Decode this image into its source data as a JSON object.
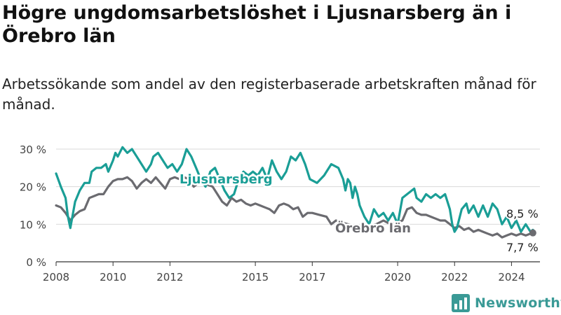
{
  "title": "Högre ungdomsarbetslöshet i Ljusnarsberg än i Örebro län",
  "subtitle": "Arbetssökande som andel av den registerbaserade arbetskraften månad för månad.",
  "brand": "Newsworthy",
  "colors": {
    "ljusnarsberg": "#1a9e96",
    "orebro": "#6b6b70",
    "grid": "#d9d9d9",
    "axis": "#333333"
  },
  "chart_data": {
    "type": "line",
    "x_ticks": [
      "2008",
      "2010",
      "2012",
      "2015",
      "2017",
      "2020",
      "2022",
      "2024"
    ],
    "y_ticks": [
      "0 %",
      "10 %",
      "20 %",
      "30 %"
    ],
    "ylim": [
      0,
      30
    ],
    "xlim": [
      "2008-01",
      "2025-01"
    ],
    "grid": true,
    "series": [
      {
        "name": "Ljusnarsberg",
        "color": "#1a9e96",
        "end_label": "8,5 %",
        "points": [
          [
            "2008-01",
            23.5
          ],
          [
            "2008-03",
            20
          ],
          [
            "2008-05",
            17
          ],
          [
            "2008-06",
            12
          ],
          [
            "2008-07",
            9
          ],
          [
            "2008-09",
            16
          ],
          [
            "2008-11",
            19
          ],
          [
            "2009-01",
            21
          ],
          [
            "2009-03",
            21
          ],
          [
            "2009-04",
            24
          ],
          [
            "2009-06",
            25
          ],
          [
            "2009-08",
            25
          ],
          [
            "2009-10",
            26
          ],
          [
            "2009-11",
            24
          ],
          [
            "2010-01",
            27
          ],
          [
            "2010-02",
            29
          ],
          [
            "2010-03",
            28
          ],
          [
            "2010-05",
            30.5
          ],
          [
            "2010-07",
            29
          ],
          [
            "2010-09",
            30
          ],
          [
            "2010-11",
            28
          ],
          [
            "2011-01",
            26
          ],
          [
            "2011-03",
            24
          ],
          [
            "2011-05",
            26
          ],
          [
            "2011-06",
            28
          ],
          [
            "2011-08",
            29
          ],
          [
            "2011-10",
            27
          ],
          [
            "2011-12",
            25
          ],
          [
            "2012-02",
            26
          ],
          [
            "2012-04",
            24
          ],
          [
            "2012-06",
            26
          ],
          [
            "2012-08",
            30
          ],
          [
            "2012-10",
            28
          ],
          [
            "2012-12",
            25
          ],
          [
            "2013-02",
            22
          ],
          [
            "2013-04",
            20
          ],
          [
            "2013-06",
            24
          ],
          [
            "2013-08",
            25
          ],
          [
            "2013-10",
            22
          ],
          [
            "2013-12",
            19
          ],
          [
            "2014-02",
            17
          ],
          [
            "2014-04",
            18
          ],
          [
            "2014-06",
            22
          ],
          [
            "2014-08",
            24
          ],
          [
            "2014-10",
            23
          ],
          [
            "2014-12",
            24
          ],
          [
            "2015-02",
            23
          ],
          [
            "2015-04",
            25
          ],
          [
            "2015-06",
            22
          ],
          [
            "2015-08",
            27
          ],
          [
            "2015-10",
            24
          ],
          [
            "2015-12",
            22
          ],
          [
            "2016-02",
            24
          ],
          [
            "2016-04",
            28
          ],
          [
            "2016-06",
            27
          ],
          [
            "2016-08",
            29
          ],
          [
            "2016-10",
            26
          ],
          [
            "2016-12",
            22
          ],
          [
            "2017-03",
            21
          ],
          [
            "2017-06",
            23
          ],
          [
            "2017-09",
            26
          ],
          [
            "2017-12",
            25
          ],
          [
            "2018-02",
            22
          ],
          [
            "2018-03",
            19
          ],
          [
            "2018-04",
            22
          ],
          [
            "2018-05",
            21
          ],
          [
            "2018-06",
            17
          ],
          [
            "2018-07",
            20
          ],
          [
            "2018-08",
            18
          ],
          [
            "2018-09",
            15
          ],
          [
            "2018-11",
            12
          ],
          [
            "2019-01",
            10
          ],
          [
            "2019-03",
            14
          ],
          [
            "2019-05",
            12
          ],
          [
            "2019-07",
            13
          ],
          [
            "2019-09",
            11
          ],
          [
            "2019-11",
            13
          ],
          [
            "2020-01",
            10
          ],
          [
            "2020-03",
            17
          ],
          [
            "2020-05",
            18
          ],
          [
            "2020-07",
            19
          ],
          [
            "2020-08",
            19.5
          ],
          [
            "2020-09",
            17
          ],
          [
            "2020-11",
            16
          ],
          [
            "2021-01",
            18
          ],
          [
            "2021-03",
            17
          ],
          [
            "2021-05",
            18
          ],
          [
            "2021-07",
            17
          ],
          [
            "2021-09",
            18
          ],
          [
            "2021-11",
            14
          ],
          [
            "2021-12",
            10
          ],
          [
            "2022-01",
            8
          ],
          [
            "2022-02",
            9
          ],
          [
            "2022-04",
            14
          ],
          [
            "2022-06",
            15.5
          ],
          [
            "2022-07",
            13
          ],
          [
            "2022-09",
            15
          ],
          [
            "2022-11",
            12
          ],
          [
            "2023-01",
            15
          ],
          [
            "2023-03",
            12
          ],
          [
            "2023-05",
            15.5
          ],
          [
            "2023-07",
            14
          ],
          [
            "2023-09",
            10
          ],
          [
            "2023-11",
            12
          ],
          [
            "2024-01",
            9
          ],
          [
            "2024-03",
            11
          ],
          [
            "2024-05",
            8
          ],
          [
            "2024-07",
            10
          ],
          [
            "2024-09",
            8
          ],
          [
            "2024-10",
            8.5
          ]
        ]
      },
      {
        "name": "Örebro län",
        "color": "#6b6b70",
        "end_label": "7,7 %",
        "points": [
          [
            "2008-01",
            15
          ],
          [
            "2008-03",
            14.5
          ],
          [
            "2008-05",
            13
          ],
          [
            "2008-07",
            11
          ],
          [
            "2008-09",
            12.5
          ],
          [
            "2008-11",
            13.5
          ],
          [
            "2009-01",
            14
          ],
          [
            "2009-03",
            17
          ],
          [
            "2009-05",
            17.5
          ],
          [
            "2009-07",
            18
          ],
          [
            "2009-09",
            18
          ],
          [
            "2009-11",
            20
          ],
          [
            "2010-01",
            21.5
          ],
          [
            "2010-03",
            22
          ],
          [
            "2010-05",
            22
          ],
          [
            "2010-07",
            22.5
          ],
          [
            "2010-09",
            21.5
          ],
          [
            "2010-11",
            19.5
          ],
          [
            "2011-01",
            21
          ],
          [
            "2011-03",
            22
          ],
          [
            "2011-05",
            21
          ],
          [
            "2011-07",
            22.5
          ],
          [
            "2011-09",
            21
          ],
          [
            "2011-11",
            19.5
          ],
          [
            "2012-01",
            22
          ],
          [
            "2012-03",
            22.5
          ],
          [
            "2012-05",
            22
          ],
          [
            "2012-07",
            22.5
          ],
          [
            "2012-09",
            22
          ],
          [
            "2012-11",
            20
          ],
          [
            "2013-01",
            21
          ],
          [
            "2013-03",
            22
          ],
          [
            "2013-05",
            20.5
          ],
          [
            "2013-07",
            20
          ],
          [
            "2013-09",
            18
          ],
          [
            "2013-11",
            16
          ],
          [
            "2014-01",
            15
          ],
          [
            "2014-03",
            17
          ],
          [
            "2014-05",
            16
          ],
          [
            "2014-07",
            16.5
          ],
          [
            "2014-09",
            15.5
          ],
          [
            "2014-11",
            15
          ],
          [
            "2015-01",
            15.5
          ],
          [
            "2015-03",
            15
          ],
          [
            "2015-05",
            14.5
          ],
          [
            "2015-07",
            14
          ],
          [
            "2015-09",
            13
          ],
          [
            "2015-11",
            15
          ],
          [
            "2016-01",
            15.5
          ],
          [
            "2016-03",
            15
          ],
          [
            "2016-05",
            14
          ],
          [
            "2016-07",
            14.5
          ],
          [
            "2016-09",
            12
          ],
          [
            "2016-11",
            13
          ],
          [
            "2017-01",
            13
          ],
          [
            "2017-04",
            12.5
          ],
          [
            "2017-07",
            12
          ],
          [
            "2017-09",
            10
          ],
          [
            "2017-11",
            11
          ],
          [
            "2018-01",
            10.5
          ],
          [
            "2018-04",
            10
          ],
          [
            "2018-07",
            9.5
          ],
          [
            "2018-10",
            9
          ],
          [
            "2019-01",
            9.5
          ],
          [
            "2019-04",
            10
          ],
          [
            "2019-07",
            11
          ],
          [
            "2019-10",
            10
          ],
          [
            "2020-01",
            10.5
          ],
          [
            "2020-03",
            11
          ],
          [
            "2020-05",
            14
          ],
          [
            "2020-07",
            14.5
          ],
          [
            "2020-09",
            13
          ],
          [
            "2020-11",
            12.5
          ],
          [
            "2021-01",
            12.5
          ],
          [
            "2021-03",
            12
          ],
          [
            "2021-05",
            11.5
          ],
          [
            "2021-07",
            11
          ],
          [
            "2021-09",
            11
          ],
          [
            "2021-11",
            10
          ],
          [
            "2022-01",
            9
          ],
          [
            "2022-03",
            9.5
          ],
          [
            "2022-05",
            8.5
          ],
          [
            "2022-07",
            9
          ],
          [
            "2022-09",
            8
          ],
          [
            "2022-11",
            8.5
          ],
          [
            "2023-01",
            8
          ],
          [
            "2023-03",
            7.5
          ],
          [
            "2023-05",
            7
          ],
          [
            "2023-07",
            7.5
          ],
          [
            "2023-09",
            6.5
          ],
          [
            "2023-11",
            7
          ],
          [
            "2024-01",
            7.5
          ],
          [
            "2024-03",
            7
          ],
          [
            "2024-05",
            7.5
          ],
          [
            "2024-07",
            7
          ],
          [
            "2024-09",
            7.5
          ],
          [
            "2024-10",
            7.7
          ]
        ]
      }
    ]
  }
}
